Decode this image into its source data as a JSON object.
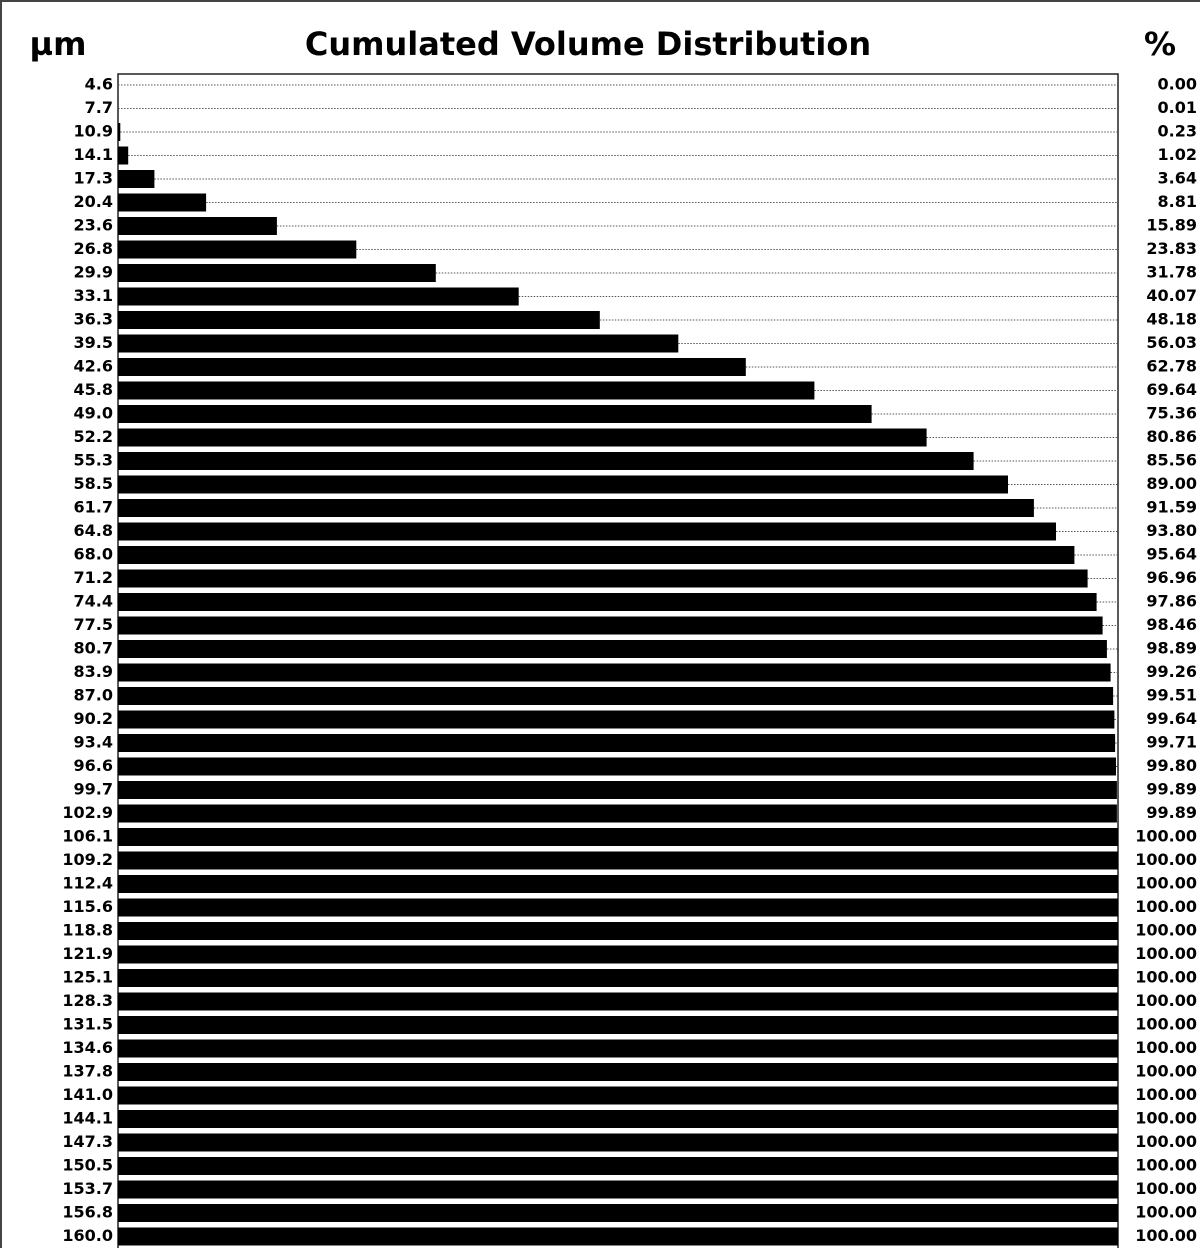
{
  "chart_data": {
    "type": "hbar",
    "title": "Cumulated Volume Distribution",
    "y_axis_label": "µm",
    "x_axis_label": "%",
    "categories": [
      "4.6",
      "7.7",
      "10.9",
      "14.1",
      "17.3",
      "20.4",
      "23.6",
      "26.8",
      "29.9",
      "33.1",
      "36.3",
      "39.5",
      "42.6",
      "45.8",
      "49.0",
      "52.2",
      "55.3",
      "58.5",
      "61.7",
      "64.8",
      "68.0",
      "71.2",
      "74.4",
      "77.5",
      "80.7",
      "83.9",
      "87.0",
      "90.2",
      "93.4",
      "96.6",
      "99.7",
      "102.9",
      "106.1",
      "109.2",
      "112.4",
      "115.6",
      "118.8",
      "121.9",
      "125.1",
      "128.3",
      "131.5",
      "134.6",
      "137.8",
      "141.0",
      "144.1",
      "147.3",
      "150.5",
      "153.7",
      "156.8",
      "160.0"
    ],
    "values": [
      0,
      0.01,
      0.23,
      1.02,
      3.64,
      8.81,
      15.89,
      23.83,
      31.78,
      40.07,
      48.18,
      56.03,
      62.78,
      69.64,
      75.36,
      80.86,
      85.56,
      89,
      91.59,
      93.8,
      95.64,
      96.96,
      97.86,
      98.46,
      98.89,
      99.26,
      99.51,
      99.64,
      99.71,
      99.8,
      99.89,
      99.89,
      100,
      100,
      100,
      100,
      100,
      100,
      100,
      100,
      100,
      100,
      100,
      100,
      100,
      100,
      100,
      100,
      100,
      100
    ],
    "value_labels": [
      "0.00",
      "0.01",
      "0.23",
      "1.02",
      "3.64",
      "8.81",
      "15.89",
      "23.83",
      "31.78",
      "40.07",
      "48.18",
      "56.03",
      "62.78",
      "69.64",
      "75.36",
      "80.86",
      "85.56",
      "89.00",
      "91.59",
      "93.80",
      "95.64",
      "96.96",
      "97.86",
      "98.46",
      "98.89",
      "99.26",
      "99.51",
      "99.64",
      "99.71",
      "99.80",
      "99.89",
      "99.89",
      "100.00",
      "100.00",
      "100.00",
      "100.00",
      "100.00",
      "100.00",
      "100.00",
      "100.00",
      "100.00",
      "100.00",
      "100.00",
      "100.00",
      "100.00",
      "100.00",
      "100.00",
      "100.00",
      "100.00",
      "100.00"
    ],
    "color": "#000000",
    "xlim": [
      0,
      100
    ]
  }
}
